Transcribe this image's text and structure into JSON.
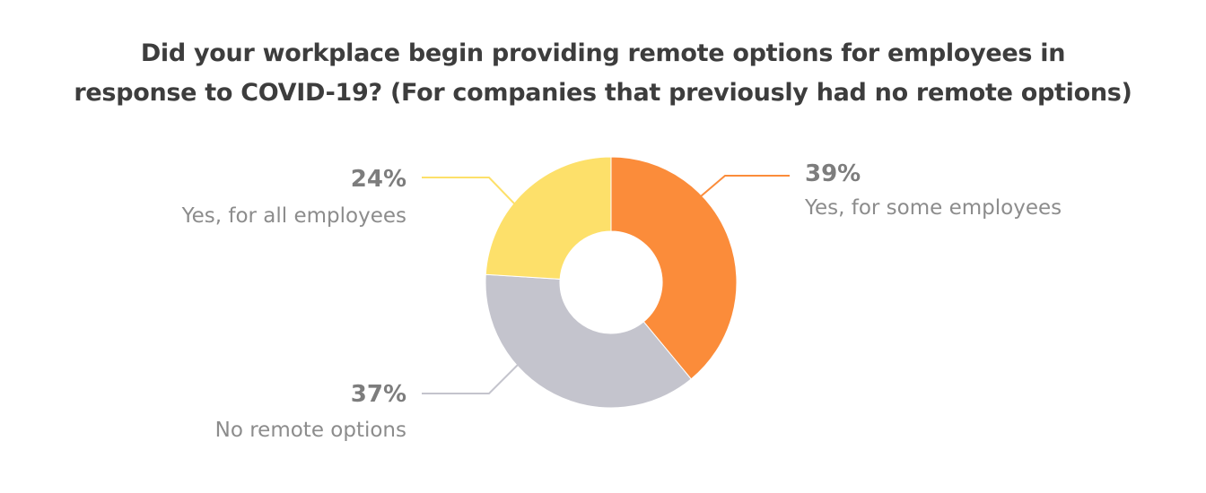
{
  "chart_data": {
    "type": "pie",
    "title_lines": [
      "Did your workplace begin providing remote options for employees in",
      "response to COVID-19? (For companies that previously had no remote options)"
    ],
    "donut": true,
    "slices": [
      {
        "label": "Yes, for some employees",
        "value": 39,
        "value_label": "39%",
        "color": "#fb8c3a"
      },
      {
        "label": "No remote options",
        "value": 37,
        "value_label": "37%",
        "color": "#c4c4cd"
      },
      {
        "label": "Yes, for all employees",
        "value": 24,
        "value_label": "24%",
        "color": "#fde06a"
      }
    ]
  }
}
